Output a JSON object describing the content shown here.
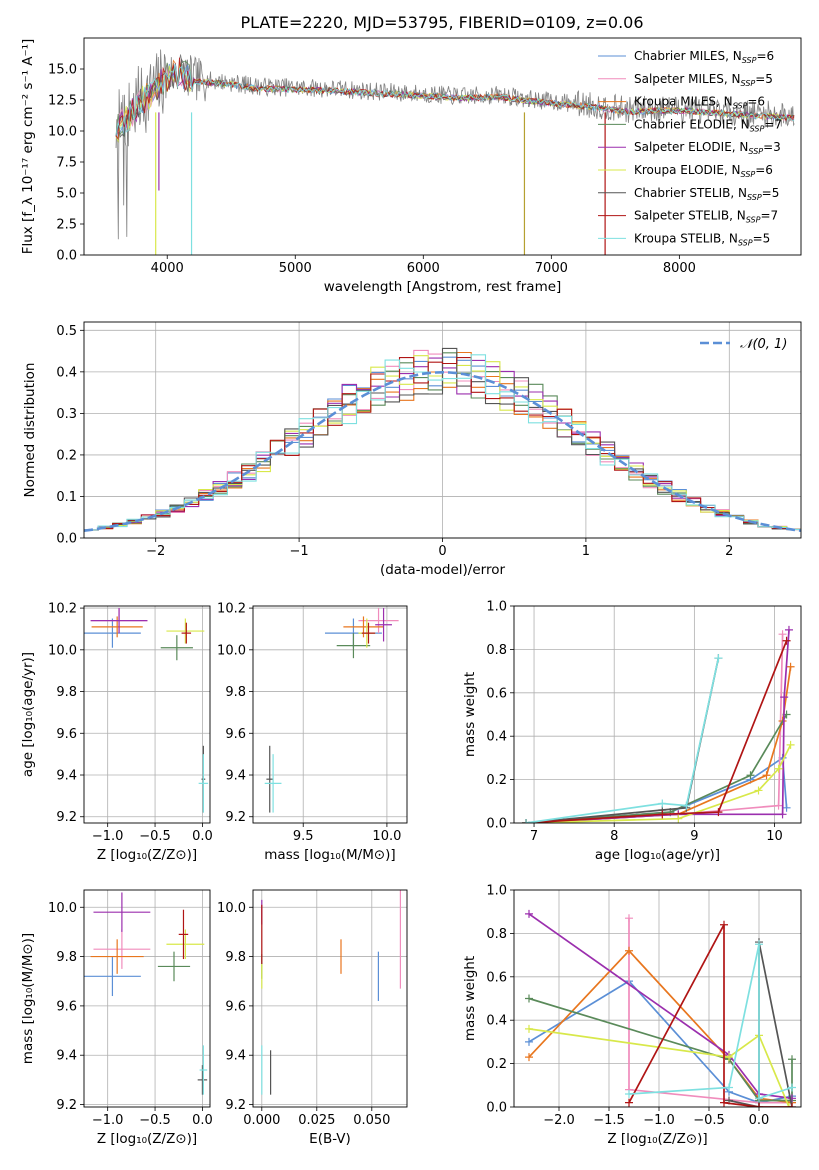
{
  "colors": {
    "chabrier_miles": "#5b8fd6",
    "salpeter_miles": "#f08cbc",
    "kroupa_miles": "#e8761e",
    "chabrier_elodie": "#5a8a5a",
    "salpeter_elodie": "#9b2fae",
    "kroupa_elodie": "#d8e84a",
    "chabrier_stelib": "#555555",
    "salpeter_stelib": "#b01515",
    "kroupa_stelib": "#7ee0e0",
    "data": "#808080",
    "normal": "#5b8fd6"
  },
  "chart_data": [
    {
      "type": "line",
      "title": "PLATE=2220, MJD=53795, FIBERID=0109, z=0.06",
      "xlabel": "wavelength [Angstrom, rest frame]",
      "ylabel": "Flux [f_λ 10⁻¹⁷ erg cm⁻² s⁻¹ A⁻¹]",
      "xlim": [
        3350,
        8950
      ],
      "ylim": [
        0,
        17.5
      ],
      "xticks": [
        "4000",
        "5000",
        "6000",
        "7000",
        "8000"
      ],
      "yticks": [
        "0.0",
        "2.5",
        "5.0",
        "7.5",
        "10.0",
        "12.5",
        "15.0"
      ],
      "grid": false,
      "legend_position": "upper right",
      "legend": [
        {
          "label": "Chabrier MILES, N",
          "sub": "SSP",
          "suffix": "=6",
          "color": "#5b8fd6"
        },
        {
          "label": "Salpeter MILES, N",
          "sub": "SSP",
          "suffix": "=5",
          "color": "#f08cbc"
        },
        {
          "label": "Kroupa MILES, N",
          "sub": "SSP",
          "suffix": "=6",
          "color": "#e8761e"
        },
        {
          "label": "Chabrier ELODIE, N",
          "sub": "SSP",
          "suffix": "=7",
          "color": "#5a8a5a"
        },
        {
          "label": "Salpeter ELODIE, N",
          "sub": "SSP",
          "suffix": "=3",
          "color": "#9b2fae"
        },
        {
          "label": "Kroupa ELODIE, N",
          "sub": "SSP",
          "suffix": "=6",
          "color": "#d8e84a"
        },
        {
          "label": "Chabrier STELIB, N",
          "sub": "SSP",
          "suffix": "=5",
          "color": "#555555"
        },
        {
          "label": "Salpeter STELIB, N",
          "sub": "SSP",
          "suffix": "=7",
          "color": "#b01515"
        },
        {
          "label": "Kroupa STELIB, N",
          "sub": "SSP",
          "suffix": "=5",
          "color": "#7ee0e0"
        }
      ],
      "continuum": {
        "x": [
          3600,
          3700,
          3800,
          3900,
          4000,
          4100,
          4200,
          4300,
          4500,
          4700,
          5000,
          5300,
          5600,
          6000,
          6300,
          6600,
          6800,
          7000,
          7300,
          7600,
          7800,
          8000,
          8300,
          8600,
          8900
        ],
        "y": [
          10.2,
          11.3,
          12.6,
          13.3,
          14.5,
          14.9,
          14.2,
          14.1,
          13.9,
          13.6,
          13.5,
          13.4,
          13.2,
          13.0,
          12.8,
          12.9,
          12.6,
          12.4,
          12.1,
          11.7,
          11.8,
          11.8,
          11.6,
          11.4,
          11.2
        ]
      },
      "spikes": [
        {
          "x": 3910,
          "y": 0,
          "color": "#d8e84a"
        },
        {
          "x": 3935,
          "y": 5.2,
          "color": "#9b2fae"
        },
        {
          "x": 4190,
          "y": 0,
          "color": "#7ee0e0"
        },
        {
          "x": 6790,
          "y": 0,
          "color": "#b5a030"
        },
        {
          "x": 7420,
          "y": 0,
          "color": "#b01515"
        }
      ]
    },
    {
      "type": "histogram",
      "xlabel": "(data-model)/error",
      "ylabel": "Normed distribution",
      "xlim": [
        -2.5,
        2.5
      ],
      "ylim": [
        0,
        0.52
      ],
      "xticks": [
        "−2",
        "−1",
        "0",
        "1",
        "2"
      ],
      "yticks": [
        "0.0",
        "0.1",
        "0.2",
        "0.3",
        "0.4",
        "0.5"
      ],
      "grid": true,
      "legend_position": "upper right",
      "legend": [
        {
          "label": "𝒩(0, 1)",
          "color": "#5b8fd6"
        }
      ],
      "bin_width": 0.1
    },
    {
      "type": "scatter",
      "xlabel": "Z [log₁₀(Z/Z⊙)]",
      "ylabel": "age  [log₁₀(age/yr)]",
      "xlim": [
        -1.25,
        0.08
      ],
      "ylim": [
        9.17,
        10.21
      ],
      "xticks": [
        "−1.0",
        "−0.5",
        "0.0"
      ],
      "yticks": [
        "9.2",
        "9.4",
        "9.6",
        "9.8",
        "10.0",
        "10.2"
      ],
      "points": [
        {
          "x": -0.95,
          "y": 10.08,
          "xerr": 0.3,
          "yerr": 0.07,
          "color": "#5b8fd6"
        },
        {
          "x": -0.88,
          "y": 10.14,
          "xerr": 0.3,
          "yerr": 0.06,
          "color": "#f08cbc"
        },
        {
          "x": -0.9,
          "y": 10.11,
          "xerr": 0.27,
          "yerr": 0.05,
          "color": "#e8761e"
        },
        {
          "x": -0.27,
          "y": 10.01,
          "xerr": 0.17,
          "yerr": 0.06,
          "color": "#5a8a5a"
        },
        {
          "x": -0.88,
          "y": 10.14,
          "xerr": 0.3,
          "yerr": 0.06,
          "color": "#9b2fae"
        },
        {
          "x": -0.18,
          "y": 10.09,
          "xerr": 0.2,
          "yerr": 0.06,
          "color": "#d8e84a"
        },
        {
          "x": 0.01,
          "y": 9.38,
          "xerr": 0.02,
          "yerr": 0.16,
          "color": "#555555"
        },
        {
          "x": -0.17,
          "y": 10.08,
          "xerr": 0.05,
          "yerr": 0.05,
          "color": "#b01515"
        },
        {
          "x": 0.01,
          "y": 9.36,
          "xerr": 0.05,
          "yerr": 0.14,
          "color": "#7ee0e0"
        }
      ]
    },
    {
      "type": "scatter",
      "xlabel": "mass [log₁₀(M/M⊙)]",
      "ylabel": "",
      "xlim": [
        9.2,
        10.12
      ],
      "ylim": [
        9.17,
        10.21
      ],
      "xticks": [
        "9.5",
        "10.0"
      ],
      "yticks": [
        "9.2",
        "9.4",
        "9.6",
        "9.8",
        "10.0",
        "10.2"
      ],
      "points": [
        {
          "x": 9.8,
          "y": 10.08,
          "xerr": 0.17,
          "yerr": 0.07,
          "color": "#5b8fd6"
        },
        {
          "x": 9.95,
          "y": 10.14,
          "xerr": 0.12,
          "yerr": 0.06,
          "color": "#f08cbc"
        },
        {
          "x": 9.86,
          "y": 10.11,
          "xerr": 0.12,
          "yerr": 0.05,
          "color": "#e8761e"
        },
        {
          "x": 9.8,
          "y": 10.02,
          "xerr": 0.1,
          "yerr": 0.06,
          "color": "#5a8a5a"
        },
        {
          "x": 9.98,
          "y": 10.12,
          "xerr": 0.05,
          "yerr": 0.08,
          "color": "#9b2fae"
        },
        {
          "x": 9.88,
          "y": 10.08,
          "xerr": 0.05,
          "yerr": 0.07,
          "color": "#d8e84a"
        },
        {
          "x": 9.3,
          "y": 9.38,
          "xerr": 0.02,
          "yerr": 0.16,
          "color": "#555555"
        },
        {
          "x": 9.89,
          "y": 10.08,
          "xerr": 0.04,
          "yerr": 0.05,
          "color": "#b01515"
        },
        {
          "x": 9.32,
          "y": 9.36,
          "xerr": 0.05,
          "yerr": 0.14,
          "color": "#7ee0e0"
        }
      ]
    },
    {
      "type": "line",
      "xlabel": "age  [log₁₀(age/yr)]",
      "ylabel": "mass weight",
      "xlim": [
        6.75,
        10.33
      ],
      "ylim": [
        0,
        1
      ],
      "xticks": [
        "7",
        "8",
        "9",
        "10"
      ],
      "yticks": [
        "0.0",
        "0.2",
        "0.4",
        "0.6",
        "0.8",
        "1.0"
      ],
      "grid": true,
      "series": [
        {
          "color": "#5b8fd6",
          "x": [
            6.9,
            8.7,
            9.7,
            10.1,
            10.15
          ],
          "y": [
            0,
            0.05,
            0.2,
            0.3,
            0.07
          ]
        },
        {
          "color": "#f08cbc",
          "x": [
            6.9,
            8.8,
            10.05,
            10.1
          ],
          "y": [
            0,
            0.04,
            0.08,
            0.87
          ]
        },
        {
          "color": "#e8761e",
          "x": [
            6.9,
            8.8,
            9.9,
            10.1,
            10.2
          ],
          "y": [
            0,
            0.04,
            0.22,
            0.47,
            0.72
          ]
        },
        {
          "color": "#5a8a5a",
          "x": [
            6.9,
            8.7,
            9.7,
            10.15
          ],
          "y": [
            0,
            0.05,
            0.22,
            0.5
          ]
        },
        {
          "color": "#9b2fae",
          "x": [
            6.9,
            8.8,
            10.1,
            10.12,
            10.18
          ],
          "y": [
            0,
            0.04,
            0.04,
            0.58,
            0.89
          ]
        },
        {
          "color": "#d8e84a",
          "x": [
            6.9,
            8.8,
            9.8,
            10.05,
            10.2
          ],
          "y": [
            0,
            0.02,
            0.15,
            0.25,
            0.36
          ]
        },
        {
          "color": "#555555",
          "x": [
            6.9,
            8.6,
            8.9,
            9.3
          ],
          "y": [
            0,
            0.06,
            0.07,
            0.76
          ]
        },
        {
          "color": "#b01515",
          "x": [
            6.9,
            8.6,
            9.3,
            10.15
          ],
          "y": [
            0,
            0.04,
            0.05,
            0.84
          ]
        },
        {
          "color": "#7ee0e0",
          "x": [
            6.9,
            8.6,
            8.9,
            9.3
          ],
          "y": [
            0,
            0.09,
            0.08,
            0.76
          ]
        }
      ]
    },
    {
      "type": "scatter",
      "xlabel": "Z [log₁₀(Z/Z⊙)]",
      "ylabel": "mass [log₁₀(M/M⊙)]",
      "xlim": [
        -1.25,
        0.08
      ],
      "ylim": [
        9.19,
        10.07
      ],
      "xticks": [
        "−1.0",
        "−0.5",
        "0.0"
      ],
      "yticks": [
        "9.2",
        "9.4",
        "9.6",
        "9.8",
        "10.0"
      ],
      "points": [
        {
          "x": -0.95,
          "y": 9.72,
          "xerr": 0.3,
          "yerr": 0.08,
          "color": "#5b8fd6"
        },
        {
          "x": -0.85,
          "y": 9.83,
          "xerr": 0.3,
          "yerr": 0.08,
          "color": "#f08cbc"
        },
        {
          "x": -0.9,
          "y": 9.8,
          "xerr": 0.28,
          "yerr": 0.07,
          "color": "#e8761e"
        },
        {
          "x": -0.3,
          "y": 9.76,
          "xerr": 0.17,
          "yerr": 0.06,
          "color": "#5a8a5a"
        },
        {
          "x": -0.85,
          "y": 9.98,
          "xerr": 0.3,
          "yerr": 0.08,
          "color": "#9b2fae"
        },
        {
          "x": -0.18,
          "y": 9.85,
          "xerr": 0.2,
          "yerr": 0.06,
          "color": "#d8e84a"
        },
        {
          "x": 0.0,
          "y": 9.3,
          "xerr": 0.05,
          "yerr": 0.06,
          "color": "#555555"
        },
        {
          "x": -0.2,
          "y": 9.89,
          "xerr": 0.05,
          "yerr": 0.1,
          "color": "#b01515"
        },
        {
          "x": 0.01,
          "y": 9.34,
          "xerr": 0.04,
          "yerr": 0.1,
          "color": "#7ee0e0"
        }
      ]
    },
    {
      "type": "scatter",
      "xlabel": "E(B-V)",
      "ylabel": "",
      "xlim": [
        -0.004,
        0.066
      ],
      "ylim": [
        9.19,
        10.07
      ],
      "xticks": [
        "0.000",
        "0.025",
        "0.050"
      ],
      "yticks": [
        "9.2",
        "9.4",
        "9.6",
        "9.8",
        "10.0"
      ],
      "points": [
        {
          "x": 0.053,
          "y": 9.72,
          "yerr": 0.1,
          "color": "#5b8fd6"
        },
        {
          "x": 0.063,
          "y": 9.87,
          "yerr": 0.2,
          "color": "#f08cbc"
        },
        {
          "x": 0.036,
          "y": 9.8,
          "yerr": 0.07,
          "color": "#e8761e"
        },
        {
          "x": 0.0,
          "y": 9.76,
          "yerr": 0.05,
          "color": "#5a8a5a"
        },
        {
          "x": 0.0,
          "y": 9.98,
          "yerr": 0.05,
          "color": "#9b2fae"
        },
        {
          "x": 0.0,
          "y": 9.72,
          "yerr": 0.05,
          "color": "#d8e84a"
        },
        {
          "x": 0.004,
          "y": 9.33,
          "yerr": 0.09,
          "color": "#555555"
        },
        {
          "x": 0.0,
          "y": 9.89,
          "yerr": 0.12,
          "color": "#b01515"
        },
        {
          "x": 0.0,
          "y": 9.34,
          "yerr": 0.1,
          "color": "#7ee0e0"
        }
      ]
    },
    {
      "type": "line",
      "xlabel": "Z [log₁₀(Z/Z⊙)]",
      "ylabel": "mass weight",
      "xlim": [
        -2.45,
        0.42
      ],
      "ylim": [
        0,
        1
      ],
      "xticks": [
        "−2.0",
        "−1.5",
        "−1.0",
        "−0.5",
        "0.0"
      ],
      "yticks": [
        "0.0",
        "0.2",
        "0.4",
        "0.6",
        "0.8",
        "1.0"
      ],
      "grid": true,
      "series": [
        {
          "color": "#5b8fd6",
          "x": [
            -2.3,
            -1.3,
            -0.3,
            0.0,
            0.33
          ],
          "y": [
            0.3,
            0.58,
            0.07,
            0.02,
            0.05
          ]
        },
        {
          "color": "#f08cbc",
          "x": [
            -1.3,
            -1.3,
            0.0,
            0.33
          ],
          "y": [
            0.87,
            0.08,
            0.02,
            0.02
          ]
        },
        {
          "color": "#e8761e",
          "x": [
            -2.3,
            -1.3,
            -0.3,
            0.0,
            0.33
          ],
          "y": [
            0.23,
            0.72,
            0.22,
            0.04,
            0.02
          ]
        },
        {
          "color": "#5a8a5a",
          "x": [
            -2.3,
            -0.3,
            0.0,
            0.33,
            0.33
          ],
          "y": [
            0.5,
            0.22,
            0.03,
            0.03,
            0.22
          ]
        },
        {
          "color": "#9b2fae",
          "x": [
            -2.3,
            -0.3,
            0.0,
            0.33
          ],
          "y": [
            0.89,
            0.24,
            0.06,
            0.04
          ]
        },
        {
          "color": "#d8e84a",
          "x": [
            -2.3,
            -0.3,
            0.0,
            0.3
          ],
          "y": [
            0.36,
            0.23,
            0.33,
            0.0
          ]
        },
        {
          "color": "#555555",
          "x": [
            -0.3,
            0.0,
            0.0,
            0.33
          ],
          "y": [
            0.03,
            0.0,
            0.76,
            0.0
          ]
        },
        {
          "color": "#b01515",
          "x": [
            -1.3,
            -0.35,
            -0.35,
            0.0,
            0.33
          ],
          "y": [
            0.02,
            0.84,
            0.02,
            0.0,
            0.0
          ]
        },
        {
          "color": "#7ee0e0",
          "x": [
            -1.3,
            -0.3,
            0.0,
            0.0,
            0.33
          ],
          "y": [
            0.06,
            0.09,
            0.75,
            0.04,
            0.09
          ]
        }
      ]
    }
  ]
}
